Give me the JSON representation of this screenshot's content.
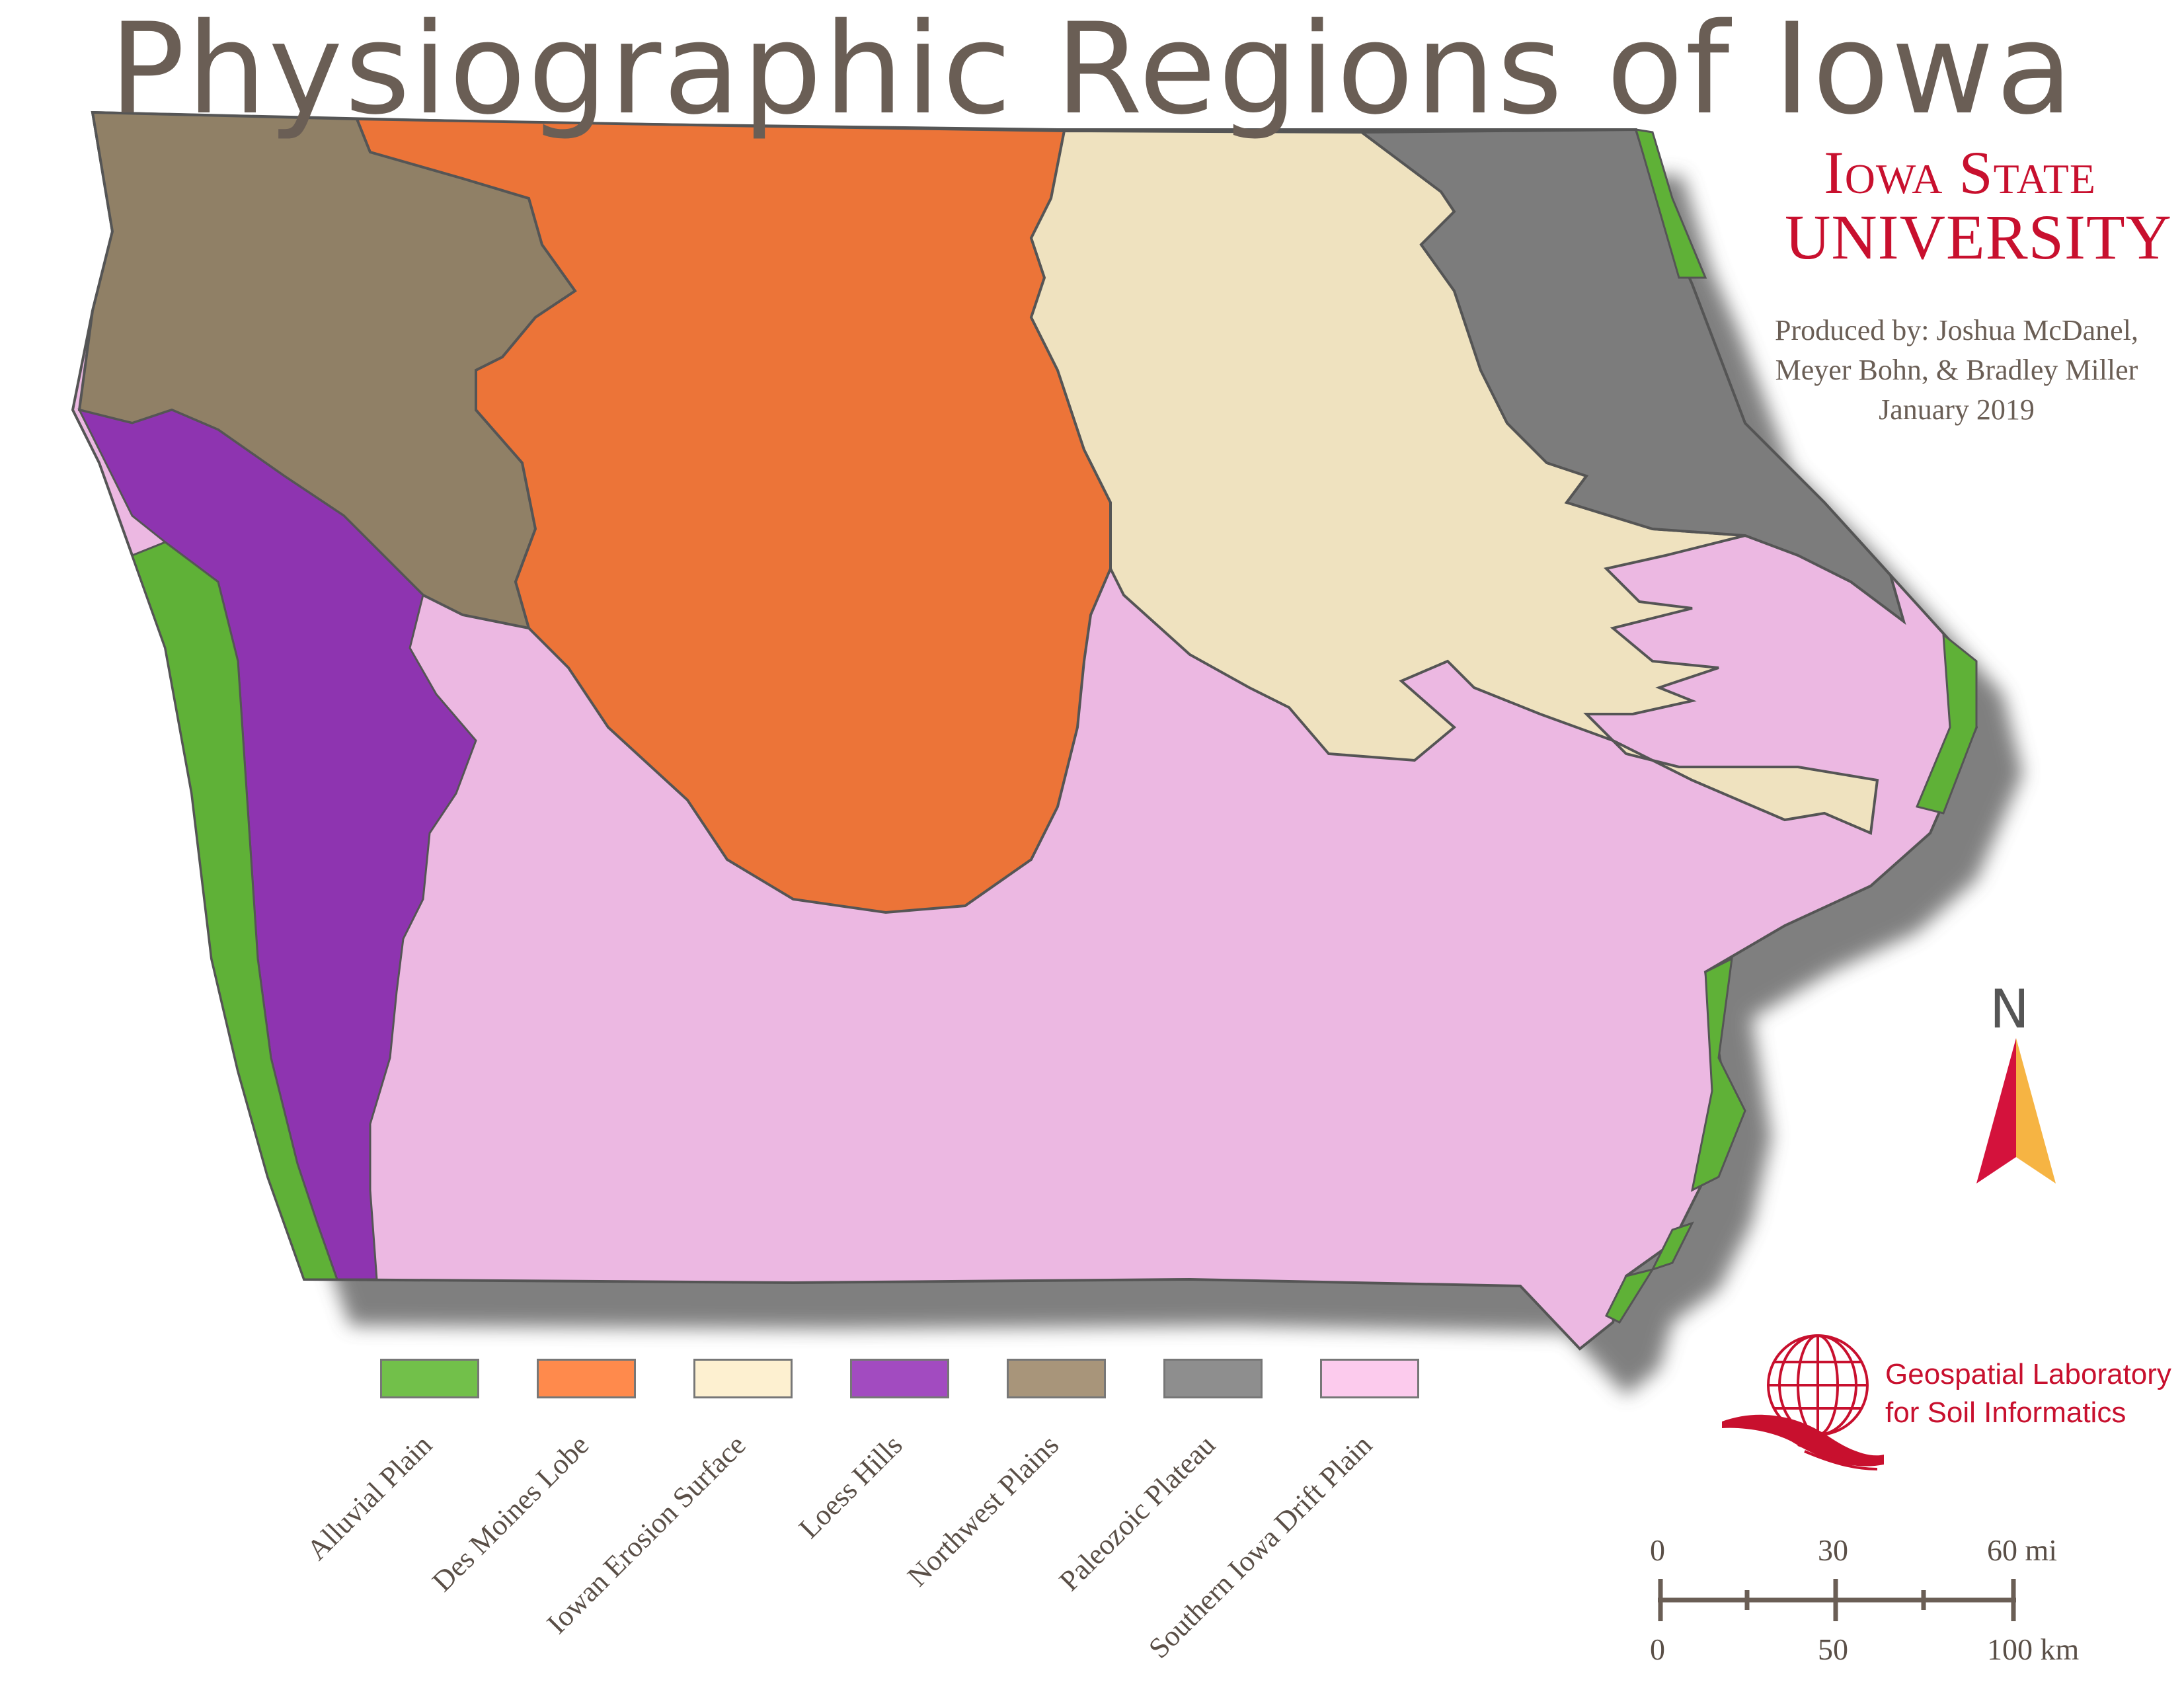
{
  "title": "Physiographic Regions of Iowa",
  "institution": {
    "line1": "Iowa State",
    "line2": "UNIVERSITY"
  },
  "credits": {
    "line1": "Produced by: Joshua McDanel,",
    "line2": "Meyer Bohn, & Bradley Miller",
    "line3": "January 2019"
  },
  "north_arrow": {
    "label": "N",
    "left_color": "#d4123c",
    "right_color": "#f6b443"
  },
  "lab": {
    "line1": "Geospatial Laboratory",
    "line2": "for Soil Informatics",
    "icon": "globe-icon",
    "color": "#c8102e"
  },
  "legend": [
    {
      "label": "Alluvial Plain",
      "color": "#72c04a"
    },
    {
      "label": "Des Moines Lobe",
      "color": "#ff8a4c"
    },
    {
      "label": "Iowan Erosion Surface",
      "color": "#fdf0d0"
    },
    {
      "label": "Loess Hills",
      "color": "#a24bc0"
    },
    {
      "label": "Northwest Plains",
      "color": "#a8957a"
    },
    {
      "label": "Paleozoic Plateau",
      "color": "#8e8e8e"
    },
    {
      "label": "Southern Iowa Drift Plain",
      "color": "#fccbed"
    }
  ],
  "regions": [
    {
      "name": "Southern Iowa Drift Plain",
      "color": "#ecb8e2"
    },
    {
      "name": "Northwest Plains",
      "color": "#908066"
    },
    {
      "name": "Des Moines Lobe",
      "color": "#ec7438"
    },
    {
      "name": "Iowan Erosion Surface",
      "color": "#efe2bf"
    },
    {
      "name": "Paleozoic Plateau",
      "color": "#7c7c7c"
    },
    {
      "name": "Loess Hills",
      "color": "#8e34b0"
    },
    {
      "name": "Alluvial Plain",
      "color": "#5fb137"
    }
  ],
  "scale": {
    "mi_labels": [
      "0",
      "30",
      "60 mi"
    ],
    "km_labels": [
      "0",
      "50",
      "100 km"
    ]
  }
}
